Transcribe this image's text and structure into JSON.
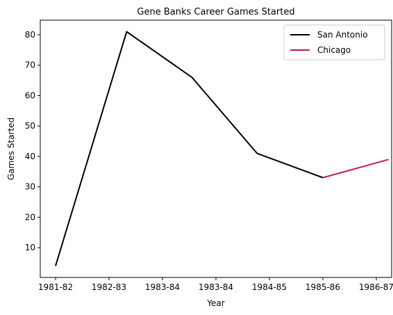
{
  "chart_data": {
    "type": "line",
    "title": "Gene Banks Career Games Started",
    "xlabel": "Year",
    "ylabel": "Games Started",
    "x_ticks": [
      "1981-82",
      "1982-83",
      "1983-84",
      "1983-84",
      "1984-85",
      "1985-86",
      "1986-87"
    ],
    "y_ticks": [
      10,
      20,
      30,
      40,
      50,
      60,
      70,
      80
    ],
    "ylim": [
      0.2,
      84.8
    ],
    "grid": false,
    "legend_position": "top-right",
    "series": [
      {
        "name": "San Antonio",
        "color": "#000000",
        "points": [
          {
            "x": "1981-82",
            "y": 4
          },
          {
            "x": "1982-83",
            "y": 81
          },
          {
            "x": "1983-84",
            "y": 66
          },
          {
            "x": "1984-85",
            "y": 41
          },
          {
            "x": "1985-86",
            "y": 33
          }
        ]
      },
      {
        "name": "Chicago",
        "color": "#c8174a",
        "points": [
          {
            "x": "1985-86",
            "y": 33
          },
          {
            "x": "1986-87",
            "y": 39
          }
        ]
      }
    ]
  }
}
